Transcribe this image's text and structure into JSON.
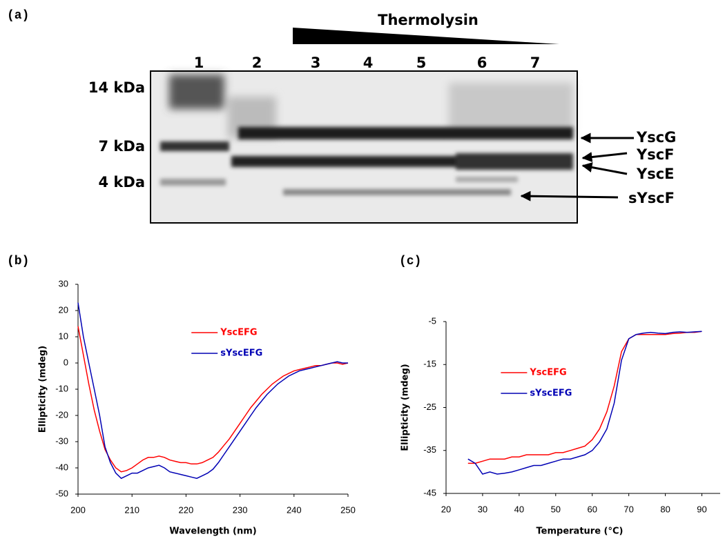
{
  "panel_a": {
    "label": "(a)",
    "title": "Thermolysin",
    "lanes": [
      "1",
      "2",
      "3",
      "4",
      "5",
      "6",
      "7"
    ],
    "markers": [
      "14 kDa",
      "7 kDa",
      "4 kDa"
    ],
    "bands": [
      "YscG",
      "YscF",
      "YscE",
      "sYscF"
    ]
  },
  "chart_data": [
    {
      "type": "line",
      "panel_label": "(b)",
      "x_label": "Wavelength (nm)",
      "y_label": "Ellipticity (mdeg)",
      "x": [
        200,
        201,
        202,
        203,
        204,
        205,
        206,
        207,
        208,
        209,
        210,
        211,
        212,
        213,
        214,
        215,
        216,
        217,
        218,
        219,
        220,
        221,
        222,
        223,
        224,
        225,
        226,
        227,
        228,
        229,
        230,
        231,
        232,
        233,
        234,
        235,
        236,
        237,
        238,
        239,
        240,
        241,
        242,
        243,
        244,
        245,
        246,
        247,
        248,
        249,
        250
      ],
      "series": [
        {
          "name": "YscEFG",
          "color": "#ff0000",
          "values": [
            14,
            3,
            -8,
            -18,
            -26,
            -33,
            -37,
            -40,
            -41.5,
            -41,
            -40,
            -38.5,
            -37,
            -36,
            -36,
            -35.5,
            -36,
            -37,
            -37.5,
            -38,
            -38,
            -38.5,
            -38.5,
            -38,
            -37,
            -36,
            -34,
            -31.5,
            -29,
            -26,
            -23,
            -20,
            -17,
            -14.5,
            -12,
            -10,
            -8,
            -6.5,
            -5,
            -4,
            -3,
            -2.5,
            -2,
            -1.5,
            -1,
            -1,
            -0.5,
            0,
            0,
            -0.5,
            0
          ]
        },
        {
          "name": "sYscEFG",
          "color": "#0000b4",
          "values": [
            23,
            10,
            0,
            -10,
            -20,
            -32,
            -38,
            -42,
            -44,
            -43,
            -42,
            -42,
            -41,
            -40,
            -39.5,
            -39,
            -40,
            -41.5,
            -42,
            -42.5,
            -43,
            -43.5,
            -44,
            -43,
            -42,
            -40.5,
            -38,
            -35,
            -32,
            -29,
            -26,
            -23,
            -20,
            -17,
            -14.5,
            -12,
            -10,
            -8,
            -6.5,
            -5,
            -4,
            -3,
            -2.5,
            -2,
            -1.5,
            -1,
            -0.5,
            0,
            0.5,
            0,
            0
          ]
        }
      ],
      "xlim": [
        200,
        250
      ],
      "xticks": [
        200,
        210,
        220,
        230,
        240,
        250
      ],
      "ylim": [
        -50,
        30
      ],
      "yticks": [
        -50,
        -40,
        -30,
        -20,
        -10,
        0,
        10,
        20,
        30
      ],
      "grid": false,
      "legend": "upper right"
    },
    {
      "type": "line",
      "panel_label": "(c)",
      "x_label": "Temperature (°C)",
      "y_label": "Ellipticity (mdeg)",
      "x": [
        26,
        28,
        30,
        32,
        34,
        36,
        38,
        40,
        42,
        44,
        46,
        48,
        50,
        52,
        54,
        56,
        58,
        60,
        62,
        64,
        66,
        68,
        70,
        72,
        74,
        76,
        78,
        80,
        82,
        84,
        86,
        88,
        90
      ],
      "series": [
        {
          "name": "YscEFG",
          "color": "#ff0000",
          "values": [
            -38,
            -38,
            -37.5,
            -37,
            -37,
            -37,
            -36.5,
            -36.5,
            -36,
            -36,
            -36,
            -36,
            -35.5,
            -35.5,
            -35,
            -34.5,
            -34,
            -32.5,
            -30,
            -26,
            -20,
            -12,
            -9,
            -8,
            -8,
            -8,
            -8,
            -8,
            -7.8,
            -7.7,
            -7.5,
            -7.5,
            -7.3
          ]
        },
        {
          "name": "sYscEFG",
          "color": "#0000b4",
          "values": [
            -37,
            -38,
            -40.5,
            -40,
            -40.5,
            -40.3,
            -40,
            -39.5,
            -39,
            -38.5,
            -38.5,
            -38,
            -37.5,
            -37,
            -37,
            -36.5,
            -36,
            -35,
            -33,
            -30,
            -24,
            -14,
            -9,
            -8,
            -7.7,
            -7.5,
            -7.7,
            -7.8,
            -7.5,
            -7.4,
            -7.5,
            -7.4,
            -7.3
          ]
        }
      ],
      "xlim": [
        20,
        95
      ],
      "xticks": [
        20,
        30,
        40,
        50,
        60,
        70,
        80,
        90
      ],
      "ylim": [
        -45,
        -5
      ],
      "yticks": [
        -45,
        -35,
        -25,
        -15,
        -5
      ],
      "grid": false,
      "legend": "center left"
    }
  ]
}
